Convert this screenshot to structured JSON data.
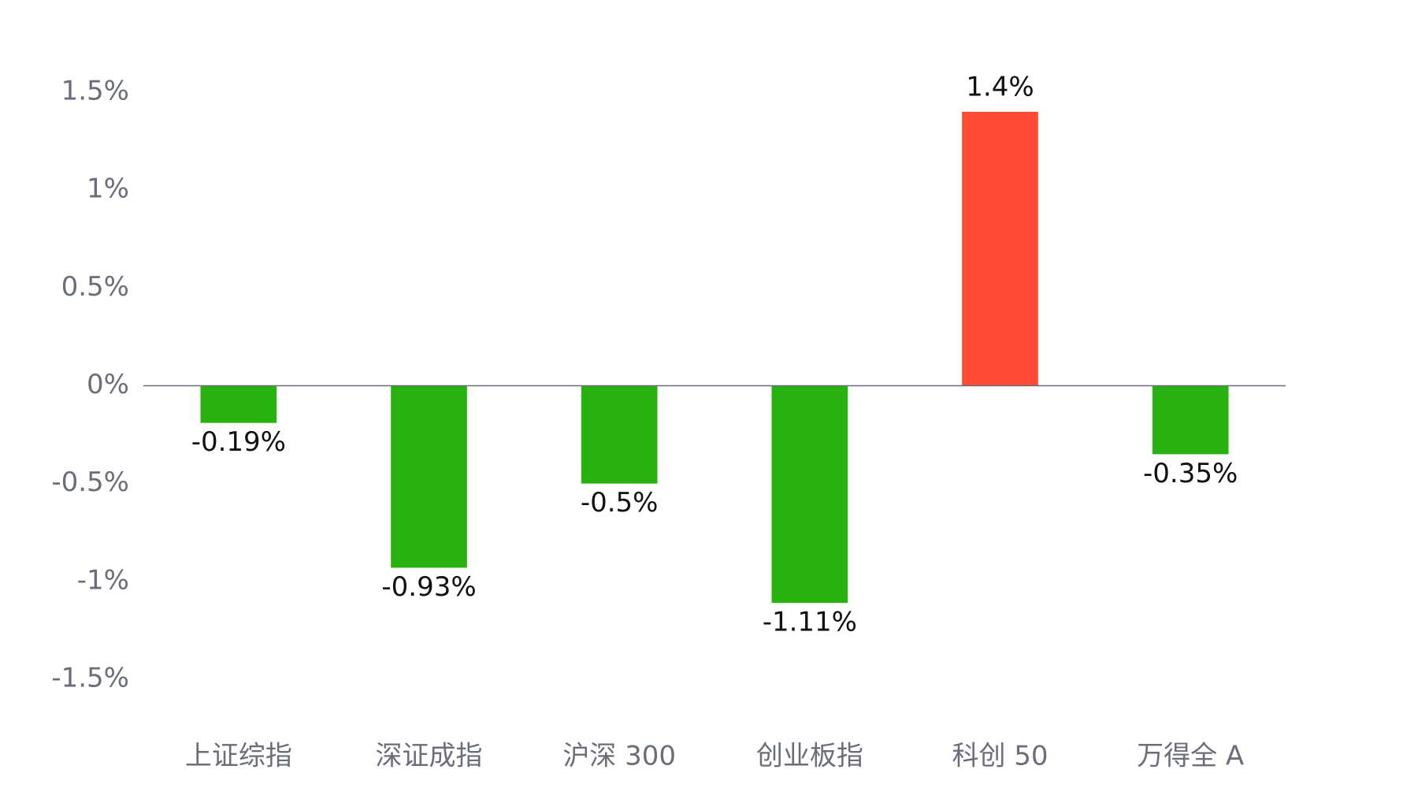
{
  "chart_data": {
    "type": "bar",
    "categories": [
      "上证综指",
      "深证成指",
      "沪深 300",
      "创业板指",
      "科创 50",
      "万得全 A"
    ],
    "values": [
      -0.19,
      -0.93,
      -0.5,
      -1.11,
      1.4,
      -0.35
    ],
    "value_labels": [
      "-0.19%",
      "-0.93%",
      "-0.5%",
      "-1.11%",
      "1.4%",
      "-0.35%"
    ],
    "colors": [
      "#28b20f",
      "#28b20f",
      "#28b20f",
      "#28b20f",
      "#ff4b33",
      "#28b20f"
    ],
    "ylim": [
      -1.5,
      1.5
    ],
    "yticks": [
      {
        "value": 1.5,
        "label": "1.5%"
      },
      {
        "value": 1,
        "label": "1%"
      },
      {
        "value": 0.5,
        "label": "0.5%"
      },
      {
        "value": 0,
        "label": "0%"
      },
      {
        "value": -0.5,
        "label": "-0.5%"
      },
      {
        "value": -1,
        "label": "-1%"
      },
      {
        "value": -1.5,
        "label": "-1.5%"
      }
    ],
    "grid": false
  }
}
